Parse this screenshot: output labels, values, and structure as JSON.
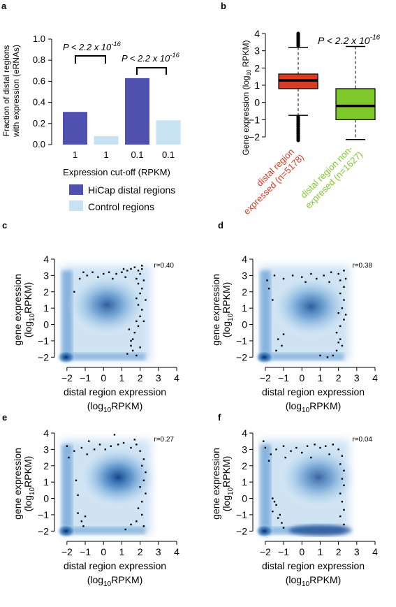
{
  "panel_labels": [
    "a",
    "b",
    "c",
    "d",
    "e",
    "f"
  ],
  "chart_data": [
    {
      "panel": "a",
      "type": "bar",
      "ylabel_line1": "Fraction of distal regions",
      "ylabel_line2": "with expression (eRNAs)",
      "xlabel": "Expression cut-off (RPKM)",
      "categories": [
        "1",
        "1",
        "0.1",
        "0.1"
      ],
      "series": [
        {
          "name": "HiCap distal regions",
          "color": "#5050b0"
        },
        {
          "name": "Control regions",
          "color": "#c6e2f3"
        }
      ],
      "values": [
        0.31,
        0.08,
        0.63,
        0.23
      ],
      "bar_series": [
        0,
        1,
        0,
        1
      ],
      "ylim": [
        0,
        1.0
      ],
      "yticks": [
        "0.0",
        "0.2",
        "0.4",
        "0.6",
        "0.8",
        "1.0"
      ],
      "yticks_values": [
        0,
        0.2,
        0.4,
        0.6,
        0.8,
        1.0
      ],
      "annotations": [
        {
          "text": "P < 2.2 x 10",
          "exponent": "-16"
        },
        {
          "text": "P < 2.2 x 10",
          "exponent": "-16"
        }
      ]
    },
    {
      "panel": "b",
      "type": "box",
      "ylabel_main": "Gene expression (log",
      "ylabel_sub": "10",
      "ylabel_end": " RPKM)",
      "ylim": [
        -2.3,
        4.2
      ],
      "yticks": [
        -2,
        -1,
        0,
        1,
        2,
        3,
        4
      ],
      "boxes": [
        {
          "label_line1": "distal region",
          "label_line2": "expressed (n=5178)",
          "color": "#dd3a22",
          "label_color": "#dd3a22",
          "whisker_low": -0.75,
          "q1": 0.8,
          "median": 1.28,
          "q3": 1.65,
          "whisker_high": 3.2,
          "outliers_low": [
            -0.82,
            -0.9,
            -1.0,
            -1.1,
            -1.2,
            -1.3,
            -1.4,
            -1.5,
            -1.6,
            -1.7,
            -1.8,
            -1.9,
            -2.0,
            -2.1,
            -2.2
          ],
          "outliers_high": [
            3.3,
            3.4,
            3.5,
            3.6,
            3.7,
            3.8,
            3.9,
            4.0
          ]
        },
        {
          "label_line1": "distal region non-",
          "label_line2": "expresed (n=1627)",
          "color": "#7ec82a",
          "label_color": "#7ec82a",
          "whisker_low": -2.15,
          "q1": -1.0,
          "median": -0.2,
          "q3": 0.8,
          "whisker_high": 3.25,
          "outliers_low": [],
          "outliers_high": []
        }
      ],
      "annotations": [
        {
          "text": "P < 2.2 x 10",
          "exponent": "-16"
        }
      ]
    },
    {
      "panel": "c",
      "type": "scatter",
      "r_label": "r=0.40",
      "xlabel_line1": "distal region expression",
      "xlabel_line2_a": "(log",
      "xlabel_line2_sub": "10",
      "xlabel_line2_b": "RPKM)",
      "ylabel_line1": "gene expression",
      "ylabel_line2_a": "(log",
      "ylabel_line2_sub": "10",
      "ylabel_line2_b": "RPKM)",
      "xlim": [
        -2.3,
        4
      ],
      "ylim": [
        -2.2,
        4
      ],
      "xticks": [
        -2,
        -1,
        0,
        1,
        2,
        3,
        4
      ],
      "yticks": [
        -2,
        -1,
        0,
        1,
        2,
        3,
        4
      ],
      "density_peak": [
        0.2,
        1.2
      ],
      "points": [
        [
          -1.3,
          2.8
        ],
        [
          -0.9,
          3.0
        ],
        [
          -0.6,
          3.2
        ],
        [
          -0.3,
          2.9
        ],
        [
          0.0,
          3.1
        ],
        [
          0.3,
          3.2
        ],
        [
          0.7,
          3.1
        ],
        [
          1.0,
          3.2
        ],
        [
          1.3,
          3.3
        ],
        [
          1.5,
          3.4
        ],
        [
          1.7,
          3.5
        ],
        [
          1.9,
          3.3
        ],
        [
          2.1,
          3.4
        ],
        [
          2.0,
          3.1
        ],
        [
          1.8,
          2.8
        ],
        [
          1.9,
          2.5
        ],
        [
          2.1,
          2.2
        ],
        [
          2.0,
          1.9
        ],
        [
          1.8,
          1.6
        ],
        [
          1.9,
          1.2
        ],
        [
          2.1,
          0.9
        ],
        [
          2.0,
          0.5
        ],
        [
          1.8,
          0.2
        ],
        [
          1.9,
          -0.1
        ],
        [
          1.7,
          -0.5
        ],
        [
          1.6,
          -0.9
        ],
        [
          1.5,
          -1.3
        ],
        [
          1.6,
          -1.6
        ],
        [
          1.8,
          -1.9
        ],
        [
          1.4,
          -0.3
        ],
        [
          1.5,
          -1.0
        ],
        [
          -1.6,
          2.0
        ],
        [
          -1.1,
          3.2
        ],
        [
          0.5,
          2.8
        ],
        [
          1.2,
          2.9
        ],
        [
          2.2,
          2.7
        ],
        [
          2.3,
          1.5
        ],
        [
          2.2,
          0.2
        ],
        [
          2.0,
          -1.4
        ],
        [
          1.3,
          -1.8
        ],
        [
          1.1,
          3.4
        ],
        [
          2.1,
          3.6
        ]
      ]
    },
    {
      "panel": "d",
      "type": "scatter",
      "r_label": "r=0.38",
      "xlabel_line1": "distal region expression",
      "xlabel_line2_a": "(log",
      "xlabel_line2_sub": "10",
      "xlabel_line2_b": "RPKM)",
      "ylabel_line1": "gene expression",
      "ylabel_line2_a": "(log",
      "ylabel_line2_sub": "10",
      "ylabel_line2_b": "RPKM)",
      "xlim": [
        -2.3,
        4
      ],
      "ylim": [
        -2.2,
        4
      ],
      "xticks": [
        -2,
        -1,
        0,
        1,
        2,
        3,
        4
      ],
      "yticks": [
        -2,
        -1,
        0,
        1,
        2,
        3,
        4
      ],
      "density_peak": [
        0.5,
        1.1
      ],
      "points": [
        [
          -1.9,
          2.7
        ],
        [
          -1.5,
          3.0
        ],
        [
          -1.0,
          2.8
        ],
        [
          -0.5,
          3.0
        ],
        [
          0.0,
          2.9
        ],
        [
          0.5,
          3.1
        ],
        [
          0.8,
          2.8
        ],
        [
          1.2,
          3.0
        ],
        [
          1.6,
          3.2
        ],
        [
          2.0,
          3.1
        ],
        [
          2.3,
          3.3
        ],
        [
          2.1,
          2.7
        ],
        [
          2.3,
          2.3
        ],
        [
          2.1,
          1.9
        ],
        [
          2.3,
          1.5
        ],
        [
          2.2,
          1.0
        ],
        [
          2.0,
          0.7
        ],
        [
          2.3,
          0.3
        ],
        [
          2.1,
          -0.1
        ],
        [
          1.9,
          -0.5
        ],
        [
          2.1,
          -0.9
        ],
        [
          2.2,
          -1.3
        ],
        [
          1.9,
          -1.6
        ],
        [
          1.7,
          -1.9
        ],
        [
          1.4,
          -2.0
        ],
        [
          -1.6,
          1.5
        ],
        [
          -1.3,
          -0.9
        ],
        [
          -1.1,
          -1.3
        ],
        [
          -1.4,
          -1.6
        ],
        [
          -1.0,
          -0.6
        ],
        [
          1.0,
          -1.9
        ],
        [
          -1.8,
          2.2
        ],
        [
          1.5,
          2.6
        ],
        [
          0.2,
          2.6
        ],
        [
          2.4,
          2.8
        ],
        [
          2.4,
          0.6
        ],
        [
          2.0,
          -1.1
        ]
      ]
    },
    {
      "panel": "e",
      "type": "scatter",
      "r_label": "r=0.27",
      "xlabel_line1": "distal region expression",
      "xlabel_line2_a": "(log",
      "xlabel_line2_sub": "10",
      "xlabel_line2_b": "RPKM)",
      "ylabel_line1": "gene expression",
      "ylabel_line2_a": "(log",
      "ylabel_line2_sub": "10",
      "ylabel_line2_b": "RPKM)",
      "xlim": [
        -2.3,
        4
      ],
      "ylim": [
        -2.2,
        4
      ],
      "xticks": [
        -2,
        -1,
        0,
        1,
        2,
        3,
        4
      ],
      "yticks": [
        -2,
        -1,
        0,
        1,
        2,
        3,
        4
      ],
      "density_peak": [
        0.8,
        1.3
      ],
      "points": [
        [
          -2.0,
          3.2
        ],
        [
          -1.6,
          2.9
        ],
        [
          -1.2,
          3.1
        ],
        [
          -0.9,
          2.7
        ],
        [
          -0.5,
          3.0
        ],
        [
          -0.2,
          3.3
        ],
        [
          0.1,
          3.0
        ],
        [
          0.4,
          3.2
        ],
        [
          0.8,
          3.3
        ],
        [
          1.1,
          3.4
        ],
        [
          1.5,
          3.1
        ],
        [
          1.8,
          3.3
        ],
        [
          2.0,
          2.9
        ],
        [
          2.2,
          2.4
        ],
        [
          2.1,
          2.0
        ],
        [
          2.3,
          1.6
        ],
        [
          2.2,
          1.1
        ],
        [
          2.0,
          0.7
        ],
        [
          2.3,
          0.3
        ],
        [
          2.1,
          -0.2
        ],
        [
          1.9,
          -0.6
        ],
        [
          2.1,
          -1.0
        ],
        [
          1.8,
          -1.4
        ],
        [
          1.5,
          -1.6
        ],
        [
          1.2,
          -1.9
        ],
        [
          -1.4,
          -0.9
        ],
        [
          -1.2,
          -1.4
        ],
        [
          -1.1,
          -1.7
        ],
        [
          -1.4,
          0.2
        ],
        [
          -1.5,
          1.1
        ],
        [
          -1.9,
          2.5
        ],
        [
          0.6,
          3.9
        ],
        [
          1.7,
          3.6
        ],
        [
          2.2,
          -1.7
        ],
        [
          -1.0,
          -1.1
        ],
        [
          -0.8,
          3.5
        ]
      ]
    },
    {
      "panel": "f",
      "type": "scatter",
      "r_label": "r=0.04",
      "xlabel_line1": "distal region expression",
      "xlabel_line2_a": "(log",
      "xlabel_line2_sub": "10",
      "xlabel_line2_b": "RPKM)",
      "ylabel_line1": "gene expression",
      "ylabel_line2_a": "(log",
      "ylabel_line2_sub": "10",
      "ylabel_line2_b": "RPKM)",
      "xlim": [
        -2.3,
        4
      ],
      "ylim": [
        -2.2,
        4
      ],
      "xticks": [
        -2,
        -1,
        0,
        1,
        2,
        3,
        4
      ],
      "yticks": [
        -2,
        -1,
        0,
        1,
        2,
        3,
        4
      ],
      "density_peak": [
        0.9,
        1.3
      ],
      "points": [
        [
          -2.0,
          3.1
        ],
        [
          -1.7,
          2.7
        ],
        [
          -1.4,
          3.0
        ],
        [
          -1.0,
          3.2
        ],
        [
          -0.6,
          2.9
        ],
        [
          -0.3,
          3.1
        ],
        [
          0.0,
          2.8
        ],
        [
          0.3,
          3.2
        ],
        [
          0.7,
          3.3
        ],
        [
          1.0,
          3.1
        ],
        [
          1.3,
          3.2
        ],
        [
          1.7,
          3.3
        ],
        [
          2.0,
          3.0
        ],
        [
          2.2,
          2.6
        ],
        [
          2.1,
          2.1
        ],
        [
          2.3,
          1.7
        ],
        [
          2.2,
          1.2
        ],
        [
          2.3,
          0.8
        ],
        [
          2.1,
          0.3
        ],
        [
          2.2,
          -0.2
        ],
        [
          2.3,
          -0.7
        ],
        [
          2.1,
          -1.1
        ],
        [
          -1.6,
          0.0
        ],
        [
          -1.4,
          -0.4
        ],
        [
          -1.6,
          -0.8
        ],
        [
          -1.3,
          -1.2
        ],
        [
          -1.1,
          -1.5
        ],
        [
          -1.5,
          -0.2
        ],
        [
          -1.2,
          -1.0
        ],
        [
          -1.0,
          -1.8
        ],
        [
          -1.8,
          2.3
        ],
        [
          0.5,
          2.5
        ],
        [
          -0.9,
          2.5
        ],
        [
          1.5,
          2.7
        ],
        [
          2.3,
          -1.6
        ],
        [
          -2.1,
          3.5
        ]
      ]
    }
  ]
}
